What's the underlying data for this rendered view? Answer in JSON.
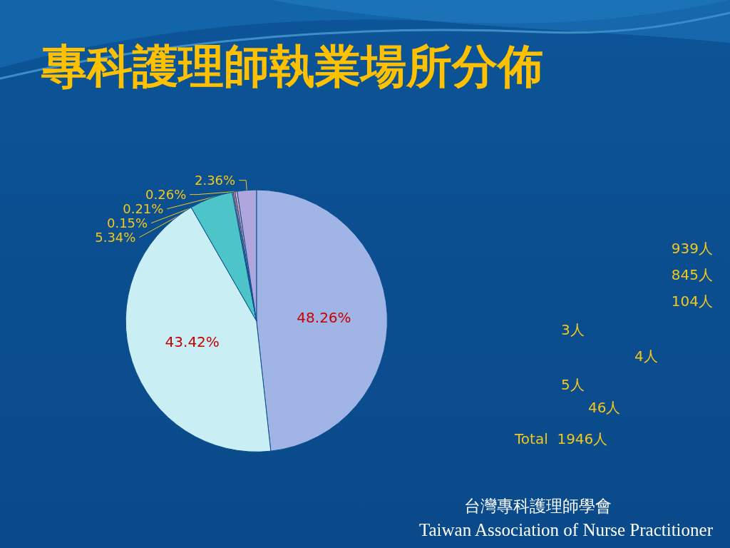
{
  "chart_data": {
    "type": "pie",
    "title": "專科護理師執業場所分佈",
    "categories": [
      null,
      null,
      null,
      null,
      null,
      null,
      null
    ],
    "values": [
      48.26,
      43.42,
      5.34,
      0.15,
      0.21,
      0.26,
      2.36
    ],
    "value_labels": [
      "48.26%",
      "43.42%",
      "5.34%",
      "0.15%",
      "0.21%",
      "0.26%",
      "2.36%"
    ],
    "colors": [
      "#a0b4e6",
      "#c9eef4",
      "#4cc4c8",
      "#f4a58c",
      "#ee8f96",
      "#f2b4c0",
      "#aea6dc"
    ],
    "annotations": [
      "939人",
      "845人",
      "104人",
      "3人",
      "4人",
      "5人",
      "46人",
      "Total  1946人",
      "台灣專科護理師學會",
      "Taiwan Association of Nurse Practitioner"
    ]
  }
}
